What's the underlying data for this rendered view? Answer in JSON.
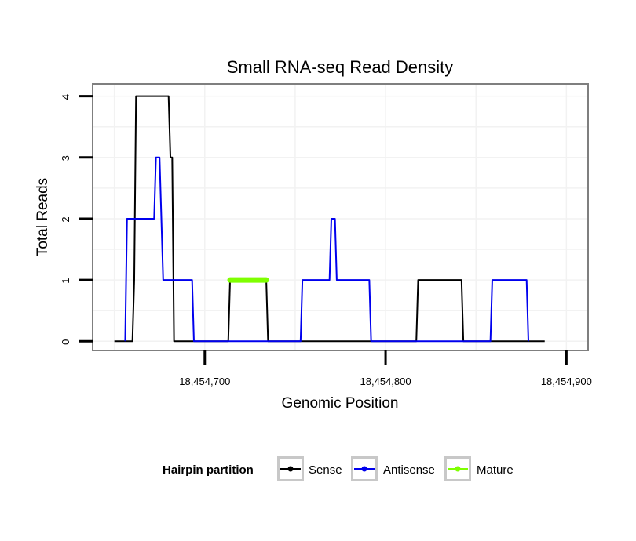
{
  "chart_data": {
    "type": "line",
    "title": "Small RNA-seq Read Density",
    "xlabel": "Genomic Position",
    "ylabel": "Total Reads",
    "xlim": [
      18454638,
      18454912
    ],
    "ylim": [
      -0.15,
      4.2
    ],
    "x_ticks": [
      18454700,
      18454800,
      18454900
    ],
    "x_tick_labels": [
      "18,454,700",
      "18,454,800",
      "18,454,900"
    ],
    "y_ticks": [
      0,
      1,
      2,
      3,
      4
    ],
    "y_tick_labels": [
      "0",
      "1",
      "2",
      "3",
      "4"
    ],
    "grid": true,
    "legend": {
      "title": "Hairpin partition",
      "position": "bottom",
      "entries": [
        "Sense",
        "Antisense",
        "Mature"
      ]
    },
    "series": [
      {
        "name": "Sense",
        "color": "#000000",
        "points": [
          [
            18454650,
            0
          ],
          [
            18454660,
            0
          ],
          [
            18454661,
            1
          ],
          [
            18454662,
            4
          ],
          [
            18454680,
            4
          ],
          [
            18454681,
            3
          ],
          [
            18454682,
            3
          ],
          [
            18454683,
            0
          ],
          [
            18454700,
            0
          ],
          [
            18454713,
            0
          ],
          [
            18454714,
            1
          ],
          [
            18454734,
            1
          ],
          [
            18454735,
            0
          ],
          [
            18454800,
            0
          ],
          [
            18454817,
            0
          ],
          [
            18454818,
            1
          ],
          [
            18454842,
            1
          ],
          [
            18454843,
            0
          ],
          [
            18454888,
            0
          ]
        ]
      },
      {
        "name": "Antisense",
        "color": "#0000ee",
        "points": [
          [
            18454656,
            0
          ],
          [
            18454657,
            2
          ],
          [
            18454672,
            2
          ],
          [
            18454673,
            3
          ],
          [
            18454675,
            3
          ],
          [
            18454677,
            1
          ],
          [
            18454693,
            1
          ],
          [
            18454694,
            0
          ],
          [
            18454753,
            0
          ],
          [
            18454754,
            1
          ],
          [
            18454769,
            1
          ],
          [
            18454770,
            2
          ],
          [
            18454772,
            2
          ],
          [
            18454773,
            1
          ],
          [
            18454791,
            1
          ],
          [
            18454792,
            0
          ],
          [
            18454858,
            0
          ],
          [
            18454859,
            1
          ],
          [
            18454878,
            1
          ],
          [
            18454879,
            0
          ]
        ]
      },
      {
        "name": "Mature",
        "color": "#7fff00",
        "points": [
          [
            18454714,
            1
          ],
          [
            18454734,
            1
          ]
        ]
      }
    ]
  },
  "colors": {
    "panel_border": "#7f7f7f",
    "grid": "#f2f2f2",
    "legend_key_border": "#c8c8c8"
  }
}
